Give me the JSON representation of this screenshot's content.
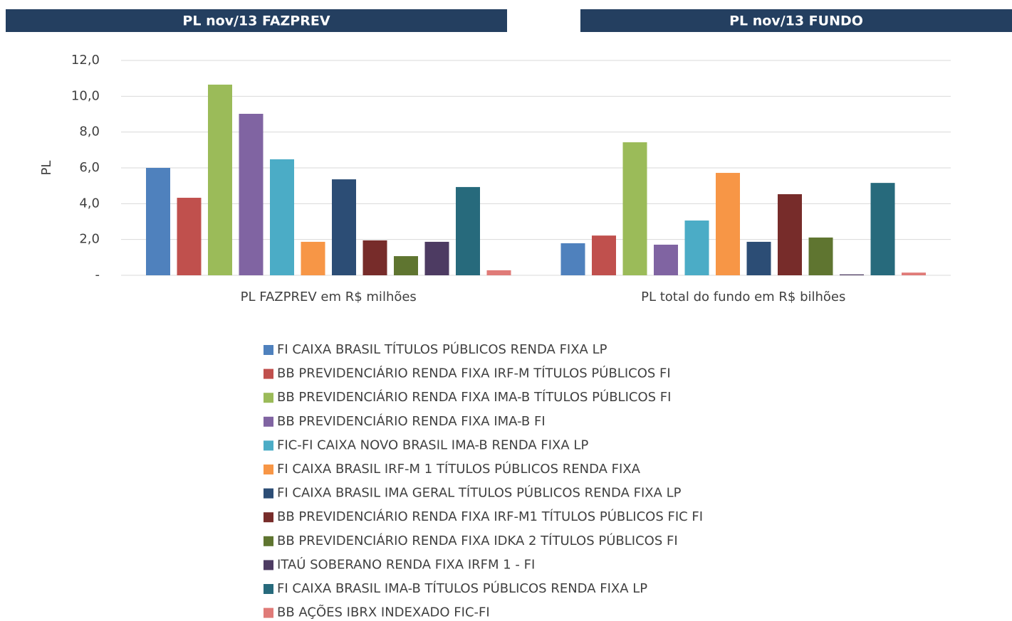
{
  "chart_data": {
    "type": "bar",
    "panel_titles": [
      "PL nov/13 FAZPREV",
      "PL nov/13 FUNDO"
    ],
    "ylabel": "PL",
    "categories": [
      "PL FAZPREV em R$ milhões",
      "PL total do fundo em R$ bilhões"
    ],
    "ylim": [
      0,
      12
    ],
    "yticks": [
      {
        "value": 0,
        "label": "-"
      },
      {
        "value": 2,
        "label": "2,0"
      },
      {
        "value": 4,
        "label": "4,0"
      },
      {
        "value": 6,
        "label": "6,0"
      },
      {
        "value": 8,
        "label": "8,0"
      },
      {
        "value": 10,
        "label": "10,0"
      },
      {
        "value": 12,
        "label": "12,0"
      }
    ],
    "grid": true,
    "legend": "bottom",
    "series": [
      {
        "name": "FI CAIXA BRASIL TÍTULOS PÚBLICOS RENDA FIXA LP",
        "color": "#4f81bd",
        "values": [
          6.0,
          1.79
        ]
      },
      {
        "name": "BB PREVIDENCIÁRIO RENDA FIXA IRF-M TÍTULOS PÚBLICOS FI",
        "color": "#c0504d",
        "values": [
          4.33,
          2.22
        ]
      },
      {
        "name": "BB PREVIDENCIÁRIO RENDA FIXA IMA-B TÍTULOS PÚBLICOS FI",
        "color": "#9bbb59",
        "values": [
          10.65,
          7.43
        ]
      },
      {
        "name": "BB PREVIDENCIÁRIO RENDA FIXA IMA-B FI",
        "color": "#8064a2",
        "values": [
          9.02,
          1.71
        ]
      },
      {
        "name": "FIC-FI CAIXA NOVO BRASIL IMA-B RENDA FIXA LP",
        "color": "#4bacc6",
        "values": [
          6.48,
          3.06
        ]
      },
      {
        "name": "FI CAIXA BRASIL IRF-M 1 TÍTULOS PÚBLICOS RENDA FIXA",
        "color": "#f79646",
        "values": [
          1.87,
          5.72
        ]
      },
      {
        "name": "FI CAIXA BRASIL IMA GERAL TÍTULOS PÚBLICOS RENDA FIXA LP",
        "color": "#2c4d75",
        "values": [
          5.36,
          1.87
        ]
      },
      {
        "name": "BB PREVIDENCIÁRIO RENDA FIXA IRF-M1 TÍTULOS PÚBLICOS FIC FI",
        "color": "#772c2a",
        "values": [
          1.95,
          4.53
        ]
      },
      {
        "name": "BB PREVIDENCIÁRIO RENDA FIXA IDKA 2 TÍTULOS PÚBLICOS FI",
        "color": "#5f7530",
        "values": [
          1.07,
          2.11
        ]
      },
      {
        "name": "ITAÚ SOBERANO RENDA FIXA IRFM 1 - FI",
        "color": "#4d3b62",
        "values": [
          1.87,
          0.05
        ]
      },
      {
        "name": "FI CAIXA BRASIL IMA-B TÍTULOS PÚBLICOS RENDA FIXA LP",
        "color": "#276a7c",
        "values": [
          4.93,
          5.16
        ]
      },
      {
        "name": "BB AÇÕES IBRX INDEXADO FIC-FI",
        "color": "#e07b78",
        "values": [
          0.28,
          0.15
        ]
      }
    ]
  }
}
